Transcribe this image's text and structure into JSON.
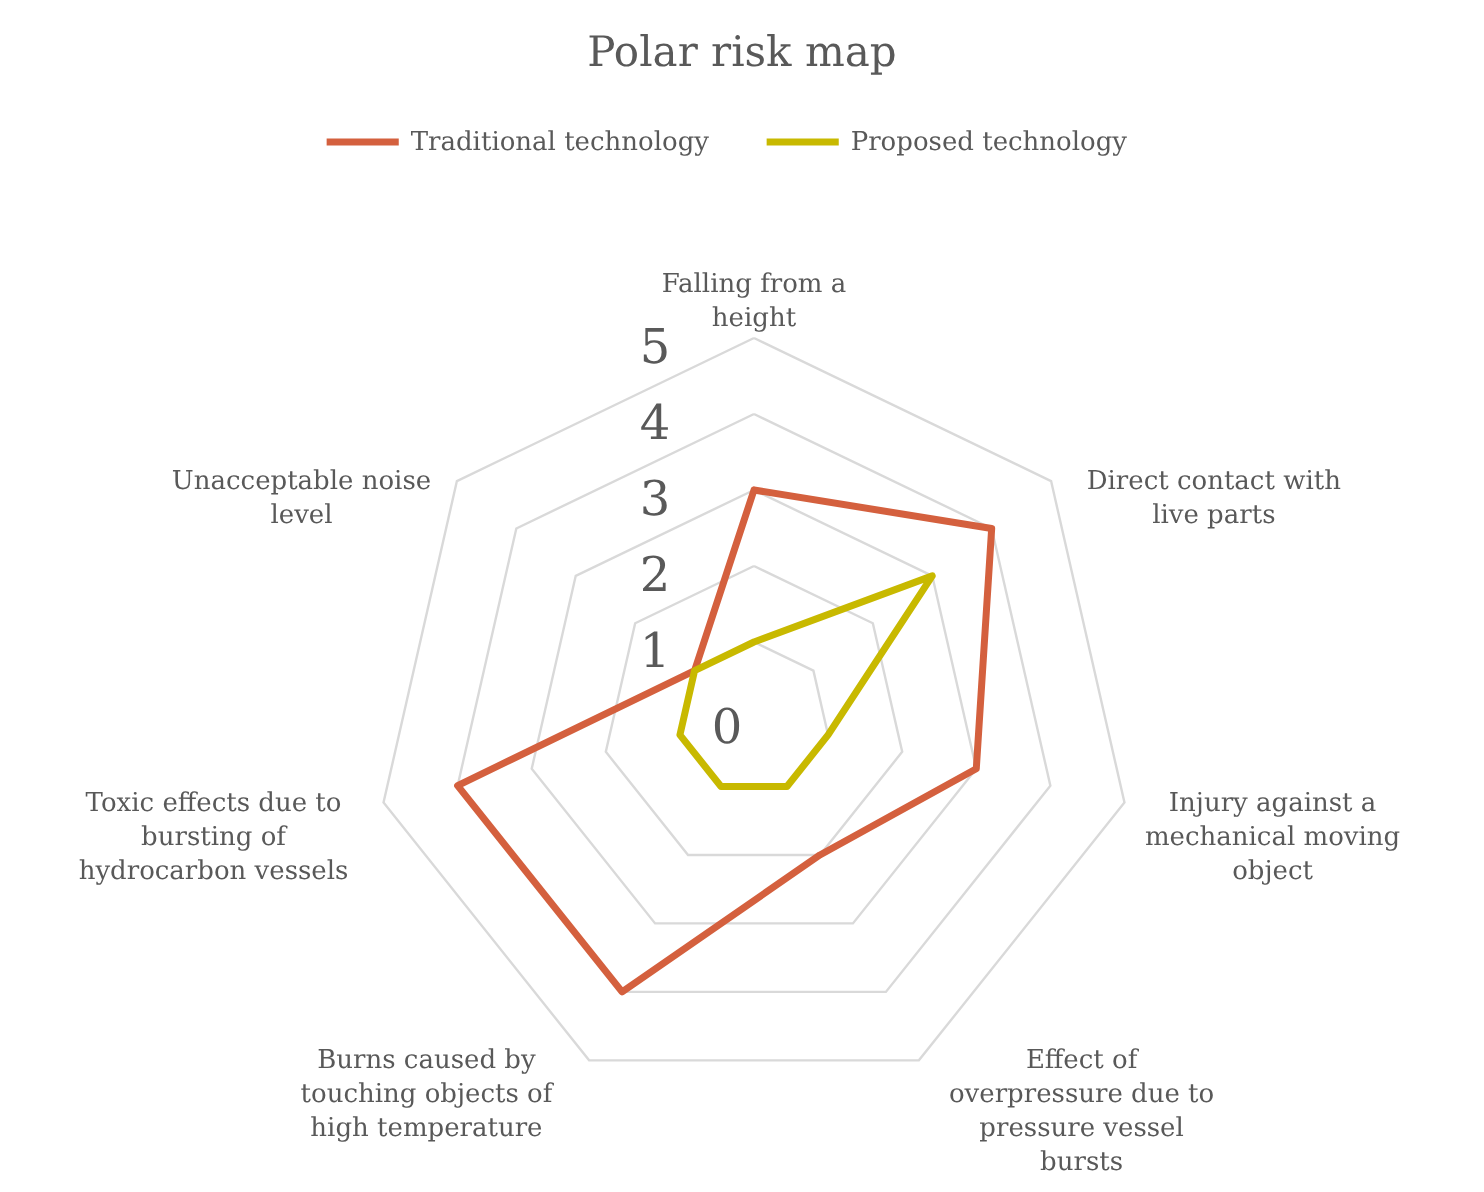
{
  "chart_data": {
    "type": "radar",
    "title": "Polar risk map",
    "categories": [
      "Falling from a height",
      "Direct contact with live parts",
      "Injury against a mechanical moving object",
      "Effect of overpressure due to pressure vessel bursts",
      "Burns caused by touching objects of high temperature",
      "Toxic effects due to bursting of hydrocarbon vessels",
      "Unacceptable noise level"
    ],
    "series": [
      {
        "name": "Traditional technology",
        "color": "#d4603e",
        "values": [
          3,
          4,
          3,
          2,
          4,
          4,
          1
        ]
      },
      {
        "name": "Proposed technology",
        "color": "#c8b900",
        "values": [
          1,
          3,
          1,
          1,
          1,
          1,
          1
        ]
      }
    ],
    "ylim": [
      0,
      5
    ],
    "yticks": [
      0,
      1,
      2,
      3,
      4,
      5
    ],
    "grid": true,
    "legend": "top"
  }
}
